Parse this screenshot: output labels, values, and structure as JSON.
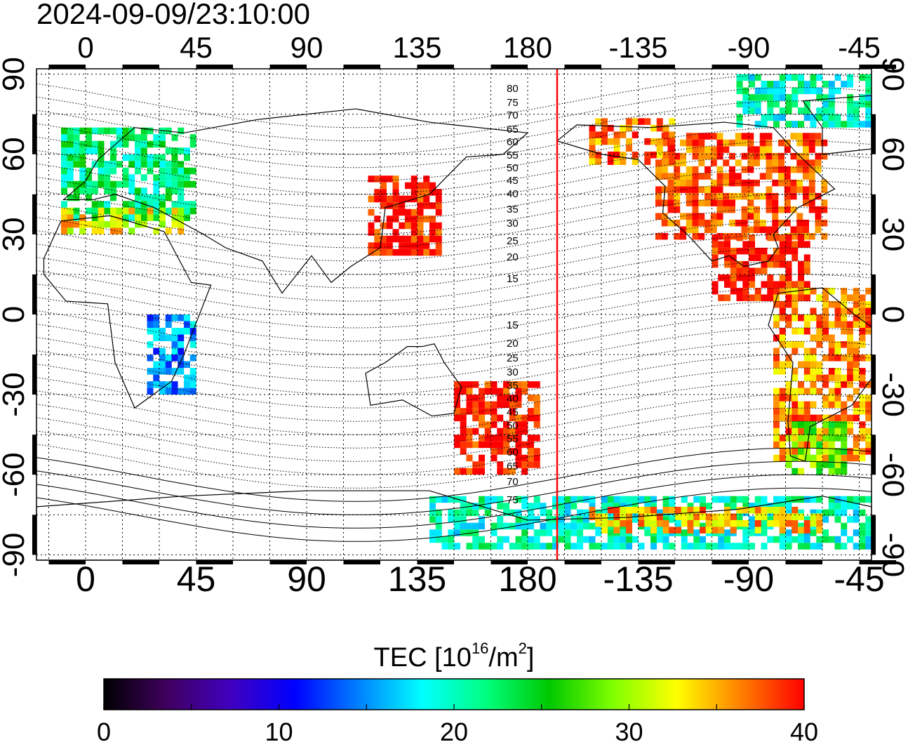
{
  "title": "2024-09-09/23:10:00",
  "map": {
    "top_lon_labels": [
      "0",
      "45",
      "90",
      "135",
      "180",
      "-135",
      "-90",
      "-45"
    ],
    "bottom_lon_labels": [
      "0",
      "45",
      "90",
      "135",
      "180",
      "-135",
      "-90",
      "-45"
    ],
    "left_lat_labels": [
      "90",
      "60",
      "30",
      "0",
      "-30",
      "-60",
      "-90"
    ],
    "right_lat_labels": [
      "90",
      "60",
      "30",
      "0",
      "-30",
      "-60",
      "-90"
    ],
    "lon_range": [
      -20,
      320
    ],
    "lat_range": [
      -92,
      92
    ],
    "grid": "dotted",
    "coastlines": true,
    "terminator_lon": 192,
    "terminator_color": "#ff0000",
    "contour_labels_north": [
      "80",
      "75",
      "70",
      "65",
      "60",
      "55",
      "50",
      "45",
      "40",
      "35",
      "30",
      "25",
      "20",
      "15"
    ],
    "contour_labels_south": [
      "15",
      "20",
      "25",
      "30",
      "35",
      "40",
      "45",
      "50",
      "55",
      "60",
      "65",
      "70",
      "75"
    ]
  },
  "colorbar": {
    "title_main": "TEC  [10",
    "title_sup1": "16",
    "title_mid": "/m",
    "title_sup2": "2",
    "title_end": "]",
    "tick_labels": [
      "0",
      "10",
      "20",
      "30",
      "40"
    ],
    "min": 0,
    "max": 40,
    "colors": [
      "#000000",
      "#400060",
      "#4000c0",
      "#0000ff",
      "#0080ff",
      "#00ffff",
      "#00ff80",
      "#00c800",
      "#80ff00",
      "#ffff00",
      "#ff8000",
      "#ff0000"
    ]
  },
  "tec_regions": [
    {
      "region": "north-america",
      "lon": [
        232,
        300
      ],
      "lat": [
        28,
        68
      ],
      "tec": 38
    },
    {
      "region": "canada-arctic",
      "lon": [
        265,
        320
      ],
      "lat": [
        70,
        88
      ],
      "tec": 20
    },
    {
      "region": "alaska",
      "lon": [
        205,
        240
      ],
      "lat": [
        56,
        72
      ],
      "tec": 37
    },
    {
      "region": "central-america",
      "lon": [
        255,
        295
      ],
      "lat": [
        5,
        28
      ],
      "tec": 40
    },
    {
      "region": "south-america",
      "lon": [
        280,
        330
      ],
      "lat": [
        -55,
        10
      ],
      "tec": 36
    },
    {
      "region": "patagonia",
      "lon": [
        285,
        310
      ],
      "lat": [
        -60,
        -40
      ],
      "tec": 28
    },
    {
      "region": "east-asia",
      "lon": [
        115,
        145
      ],
      "lat": [
        22,
        52
      ],
      "tec": 40
    },
    {
      "region": "oceania-nz",
      "lon": [
        150,
        185
      ],
      "lat": [
        -60,
        -25
      ],
      "tec": 40
    },
    {
      "region": "europe",
      "lon": [
        -10,
        45
      ],
      "lat": [
        35,
        70
      ],
      "tec": 22
    },
    {
      "region": "europe-south",
      "lon": [
        -10,
        40
      ],
      "lat": [
        30,
        38
      ],
      "tec": 33
    },
    {
      "region": "africa-east",
      "lon": [
        25,
        45
      ],
      "lat": [
        -30,
        0
      ],
      "tec": 15
    },
    {
      "region": "antarctic-coast",
      "lon": [
        140,
        320
      ],
      "lat": [
        -88,
        -70
      ],
      "tec": 20
    },
    {
      "region": "antarctic-pacific",
      "lon": [
        205,
        300
      ],
      "lat": [
        -82,
        -72
      ],
      "tec": 35
    }
  ]
}
